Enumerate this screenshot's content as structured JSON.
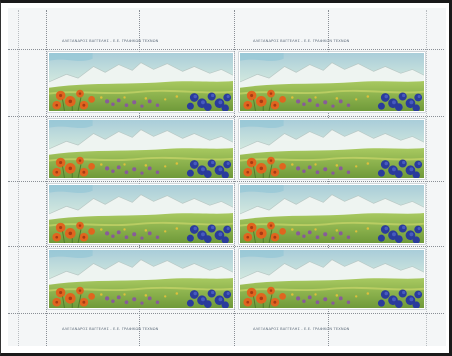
{
  "sheet": {
    "imprint_top_left": "ΑΛΕΞΑΝΔΡΟΣ ΒΑΓΓΕΛΗΣ - Ε.Ε. ΓΡΑΦΙΚΩΝ ΤΕΧΝΩΝ",
    "imprint_top_right": "ΑΛΕΞΑΝΔΡΟΣ ΒΑΓΓΕΛΗΣ - Ε.Ε. ΓΡΑΦΙΚΩΝ ΤΕΧΝΩΝ",
    "imprint_bottom_left": "ΑΛΕΞΑΝΔΡΟΣ ΒΑΓΓΕΛΗΣ - Ε.Ε. ΓΡΑΦΙΚΩΝ ΤΕΧΝΩΝ",
    "imprint_bottom_right": "ΑΛΕΞΑΝΔΡΟΣ ΒΑΓΓΕΛΗΣ - Ε.Ε. ΓΡΑΦΙΚΩΝ ΤΕΧΝΩΝ",
    "stamp_pairs": 8,
    "colors": {
      "border": "#1a1a1a",
      "sky": "#c9e3d6",
      "mountain_snow": "#eef4f1",
      "meadow_green": "#9bbf4c",
      "lily_orange": "#e0651f",
      "gentian_blue": "#2a3b9c",
      "purple_flowers": "#8a4fa8"
    }
  }
}
